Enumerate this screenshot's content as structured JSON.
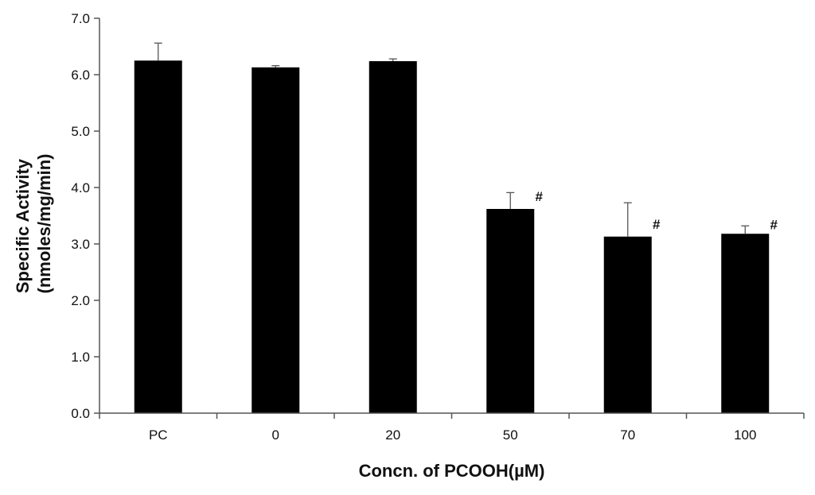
{
  "chart_data": {
    "type": "bar",
    "title": "",
    "xlabel": "Concn. of PCOOH(µM)",
    "ylabel": "Specific Activity",
    "ylabel_unit": "(nmoles/mg/min)",
    "categories": [
      "PC",
      "0",
      "20",
      "50",
      "70",
      "100"
    ],
    "values": [
      6.25,
      6.13,
      6.24,
      3.62,
      3.13,
      3.18
    ],
    "errors": [
      0.31,
      0.03,
      0.04,
      0.29,
      0.6,
      0.14
    ],
    "annotations": [
      "",
      "",
      "",
      "#",
      "#",
      "#"
    ],
    "ylim": [
      0,
      7
    ],
    "yticks": [
      0,
      1,
      2,
      3,
      4,
      5,
      6,
      7
    ],
    "ytick_labels": [
      "0.0",
      "1.0",
      "2.0",
      "3.0",
      "4.0",
      "5.0",
      "6.0",
      "7.0"
    ],
    "bar_color": "#000000",
    "axis_color": "#555555",
    "grid": false,
    "legend": "none"
  }
}
